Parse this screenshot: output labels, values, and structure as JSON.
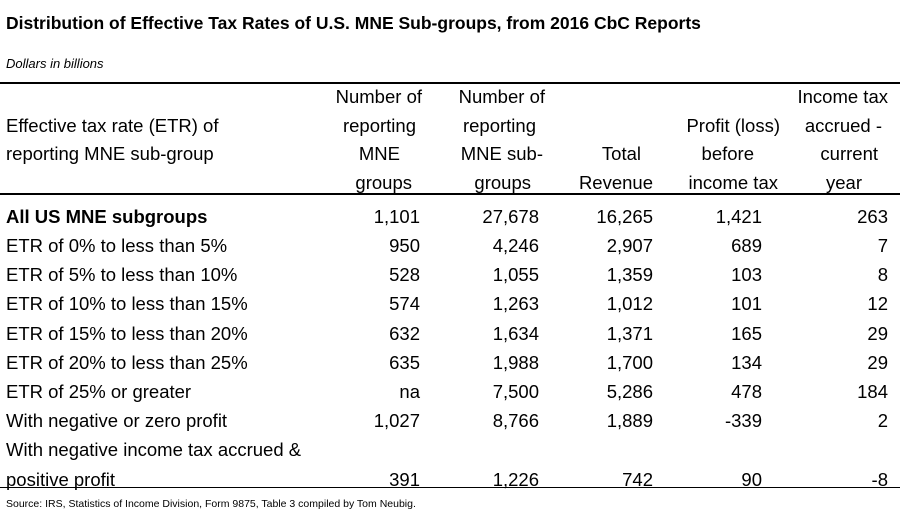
{
  "chart_data": {
    "type": "table",
    "title": "Distribution of Effective Tax Rates of U.S. MNE Sub-groups, from 2016 CbC Reports",
    "subtitle": "Dollars in billions",
    "columns": [
      "Effective tax rate (ETR) of reporting MNE sub-group",
      "Number of reporting MNE groups",
      "Number of reporting MNE sub-groups",
      "Total Revenue",
      "Profit (loss) before income tax",
      "Income tax accrued - current year"
    ],
    "column_lines": [
      [
        "Effective tax rate (ETR) of",
        "reporting MNE sub-group"
      ],
      [
        "Number of",
        "reporting",
        "MNE",
        "groups"
      ],
      [
        "Number of",
        "reporting",
        "MNE sub-",
        "groups"
      ],
      [
        "Total",
        "Revenue"
      ],
      [
        "Profit (loss)",
        "before",
        "income tax"
      ],
      [
        "Income tax",
        "accrued -",
        "current",
        "year"
      ]
    ],
    "rows": [
      {
        "label": "All US MNE subgroups",
        "values": [
          "1,101",
          "27,678",
          "16,265",
          "1,421",
          "263"
        ]
      },
      {
        "label": "ETR of 0% to less than 5%",
        "values": [
          "950",
          "4,246",
          "2,907",
          "689",
          "7"
        ]
      },
      {
        "label": "ETR of 5% to less than 10%",
        "values": [
          "528",
          "1,055",
          "1,359",
          "103",
          "8"
        ]
      },
      {
        "label": "ETR of 10% to less than 15%",
        "values": [
          "574",
          "1,263",
          "1,012",
          "101",
          "12"
        ]
      },
      {
        "label": "ETR of 15% to less than 20%",
        "values": [
          "632",
          "1,634",
          "1,371",
          "165",
          "29"
        ]
      },
      {
        "label": "ETR of 20% to less than 25%",
        "values": [
          "635",
          "1,988",
          "1,700",
          "134",
          "29"
        ]
      },
      {
        "label": "ETR of 25% or greater",
        "values": [
          "na",
          "7,500",
          "5,286",
          "478",
          "184"
        ]
      },
      {
        "label": "With negative or zero profit",
        "values": [
          "1,027",
          "8,766",
          "1,889",
          "-339",
          "2"
        ]
      },
      {
        "label": "With negative income tax accrued & positive profit",
        "values": [
          "391",
          "1,226",
          "742",
          "90",
          "-8"
        ]
      }
    ],
    "source": "Source: IRS, Statistics of Income Division, Form 9875, Table 3 compiled by Tom Neubig."
  }
}
